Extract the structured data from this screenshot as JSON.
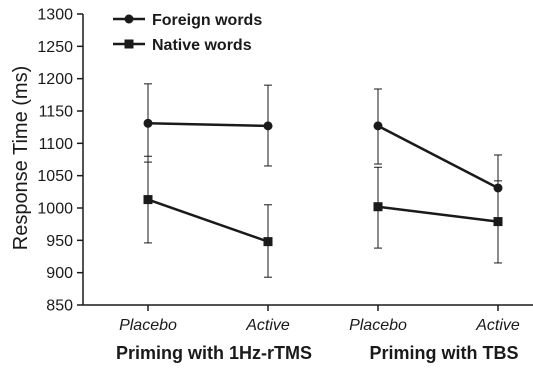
{
  "chart_data": {
    "type": "line",
    "ylabel": "Response Time (ms)",
    "ylim": [
      850,
      1300
    ],
    "yticks": [
      850,
      900,
      950,
      1000,
      1050,
      1100,
      1150,
      1200,
      1250,
      1300
    ],
    "legend_position": "top-left",
    "groups": [
      {
        "label": "Priming with 1Hz-rTMS",
        "categories": [
          "Placebo",
          "Active"
        ],
        "series": [
          {
            "name": "Foreign words",
            "marker": "circle",
            "values": [
              1131,
              1127
            ],
            "error_low": [
              1071,
              1065
            ],
            "error_high": [
              1192,
              1190
            ]
          },
          {
            "name": "Native words",
            "marker": "square",
            "values": [
              1013,
              948
            ],
            "error_low": [
              946,
              893
            ],
            "error_high": [
              1080,
              1005
            ]
          }
        ]
      },
      {
        "label": "Priming with TBS",
        "categories": [
          "Placebo",
          "Active"
        ],
        "series": [
          {
            "name": "Foreign words",
            "marker": "circle",
            "values": [
              1127,
              1031
            ],
            "error_low": [
              1068,
              982
            ],
            "error_high": [
              1184,
              1082
            ]
          },
          {
            "name": "Native words",
            "marker": "square",
            "values": [
              1002,
              979
            ],
            "error_low": [
              938,
              915
            ],
            "error_high": [
              1063,
              1042
            ]
          }
        ]
      }
    ],
    "legend": [
      {
        "name": "Foreign words",
        "marker": "circle"
      },
      {
        "name": "Native words",
        "marker": "square"
      }
    ],
    "colors": {
      "line": "#1a1a1a",
      "axis": "#1a1a1a"
    }
  }
}
